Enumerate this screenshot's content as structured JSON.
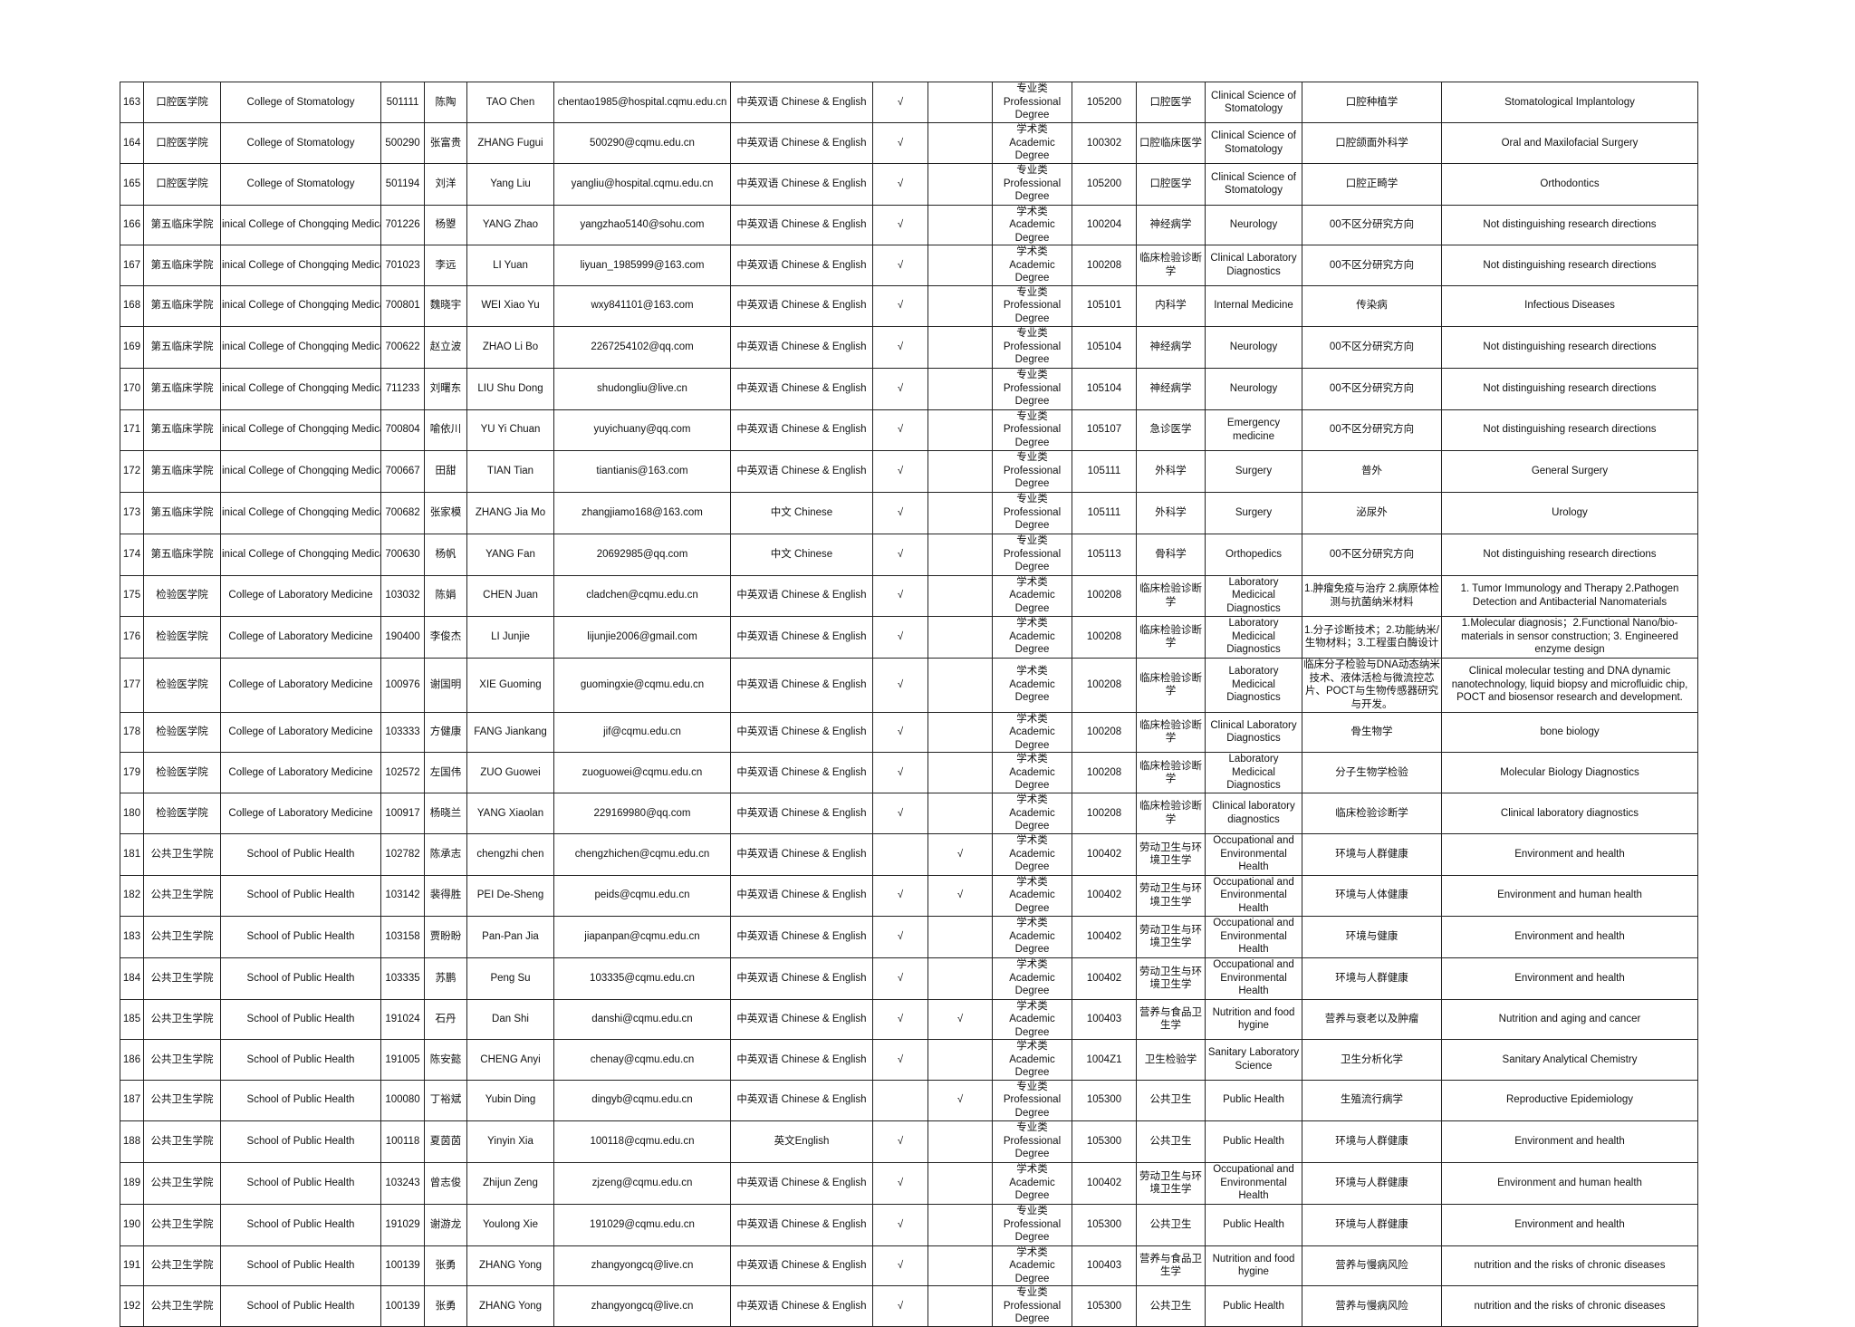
{
  "rows": [
    [
      "163",
      "口腔医学院",
      "College of Stomatology",
      "501111",
      "陈陶",
      "TAO Chen",
      "chentao1985@hospital.cqmu.edu.cn",
      "中英双语 Chinese & English",
      "√",
      "",
      "专业类 Professional Degree",
      "105200",
      "口腔医学",
      "Clinical Science of Stomatology",
      "口腔种植学",
      "Stomatological Implantology"
    ],
    [
      "164",
      "口腔医学院",
      "College of Stomatology",
      "500290",
      "张富贵",
      "ZHANG Fugui",
      "500290@cqmu.edu.cn",
      "中英双语 Chinese & English",
      "√",
      "",
      "学术类 Academic Degree",
      "100302",
      "口腔临床医学",
      "Clinical Science of Stomatology",
      "口腔颌面外科学",
      "Oral and Maxilofacial Surgery"
    ],
    [
      "165",
      "口腔医学院",
      "College of Stomatology",
      "501194",
      "刘洋",
      "Yang Liu",
      "yangliu@hospital.cqmu.edu.cn",
      "中英双语 Chinese & English",
      "√",
      "",
      "专业类 Professional Degree",
      "105200",
      "口腔医学",
      "Clinical Science of Stomatology",
      "口腔正畸学",
      "Orthodontics"
    ],
    [
      "166",
      "第五临床学院",
      "inical College of Chongqing Medica",
      "701226",
      "杨曌",
      "YANG Zhao",
      "yangzhao5140@sohu.com",
      "中英双语 Chinese & English",
      "√",
      "",
      "学术类 Academic Degree",
      "100204",
      "神经病学",
      "Neurology",
      "00不区分研究方向",
      "Not distinguishing research directions"
    ],
    [
      "167",
      "第五临床学院",
      "inical College of Chongqing Medica",
      "701023",
      "李远",
      "LI Yuan",
      "liyuan_1985999@163.com",
      "中英双语 Chinese & English",
      "√",
      "",
      "学术类 Academic Degree",
      "100208",
      "临床检验诊断学",
      "Clinical Laboratory Diagnostics",
      "00不区分研究方向",
      "Not distinguishing research directions"
    ],
    [
      "168",
      "第五临床学院",
      "inical College of Chongqing Medica",
      "700801",
      "魏晓宇",
      "WEI Xiao Yu",
      "wxy841101@163.com",
      "中英双语 Chinese & English",
      "√",
      "",
      "专业类 Professional Degree",
      "105101",
      "内科学",
      "Internal Medicine",
      "传染病",
      "Infectious Diseases"
    ],
    [
      "169",
      "第五临床学院",
      "inical College of Chongqing Medica",
      "700622",
      "赵立波",
      "ZHAO Li Bo",
      "2267254102@qq.com",
      "中英双语 Chinese & English",
      "√",
      "",
      "专业类 Professional Degree",
      "105104",
      "神经病学",
      "Neurology",
      "00不区分研究方向",
      "Not distinguishing research directions"
    ],
    [
      "170",
      "第五临床学院",
      "inical College of Chongqing Medica",
      "711233",
      "刘曙东",
      "LIU Shu Dong",
      "shudongliu@live.cn",
      "中英双语 Chinese & English",
      "√",
      "",
      "专业类 Professional Degree",
      "105104",
      "神经病学",
      "Neurology",
      "00不区分研究方向",
      "Not distinguishing research directions"
    ],
    [
      "171",
      "第五临床学院",
      "inical College of Chongqing Medica",
      "700804",
      "喻依川",
      "YU Yi Chuan",
      "yuyichuany@qq.com",
      "中英双语 Chinese & English",
      "√",
      "",
      "专业类 Professional Degree",
      "105107",
      "急诊医学",
      "Emergency medicine",
      "00不区分研究方向",
      "Not distinguishing research directions"
    ],
    [
      "172",
      "第五临床学院",
      "inical College of Chongqing Medica",
      "700667",
      "田甜",
      "TIAN Tian",
      "tiantianis@163.com",
      "中英双语 Chinese & English",
      "√",
      "",
      "专业类 Professional Degree",
      "105111",
      "外科学",
      "Surgery",
      "普外",
      "General Surgery"
    ],
    [
      "173",
      "第五临床学院",
      "inical College of Chongqing Medica",
      "700682",
      "张家模",
      "ZHANG Jia Mo",
      "zhangjiamo168@163.com",
      "中文 Chinese",
      "√",
      "",
      "专业类 Professional Degree",
      "105111",
      "外科学",
      "Surgery",
      "泌尿外",
      "Urology"
    ],
    [
      "174",
      "第五临床学院",
      "inical College of Chongqing Medica",
      "700630",
      "杨帆",
      "YANG Fan",
      "20692985@qq.com",
      "中文 Chinese",
      "√",
      "",
      "专业类 Professional Degree",
      "105113",
      "骨科学",
      "Orthopedics",
      "00不区分研究方向",
      "Not distinguishing research directions"
    ],
    [
      "175",
      "检验医学院",
      "College of Laboratory Medicine",
      "103032",
      "陈娟",
      "CHEN Juan",
      "cladchen@cqmu.edu.cn",
      "中英双语 Chinese & English",
      "√",
      "",
      "学术类 Academic Degree",
      "100208",
      "临床检验诊断学",
      "Laboratory Medicical Diagnostics",
      "1.肿瘤免疫与治疗 2.病原体检测与抗菌纳米材料",
      "1. Tumor Immunology and Therapy  2.Pathogen Detection and Antibacterial Nanomaterials"
    ],
    [
      "176",
      "检验医学院",
      "College of Laboratory Medicine",
      "190400",
      "李俊杰",
      "LI Junjie",
      "lijunjie2006@gmail.com",
      "中英双语 Chinese & English",
      "√",
      "",
      "学术类 Academic Degree",
      "100208",
      "临床检验诊断学",
      "Laboratory Medicical Diagnostics",
      "1.分子诊断技术；2.功能纳米/生物材料；3.工程蛋白酶设计",
      "1.Molecular diagnosis；2.Functional Nano/bio-materials in sensor construction; 3. Engineered enzyme design"
    ],
    [
      "177",
      "检验医学院",
      "College of Laboratory Medicine",
      "100976",
      "谢国明",
      "XIE Guoming",
      "guomingxie@cqmu.edu.cn",
      "中英双语 Chinese & English",
      "√",
      "",
      "学术类 Academic Degree",
      "100208",
      "临床检验诊断学",
      "Laboratory Medicical Diagnostics",
      "临床分子检验与DNA动态纳米技术、液体活检与微流控芯片、POCT与生物传感器研究与开发。",
      "Clinical molecular testing and DNA dynamic nanotechnology, liquid biopsy and microfluidic chip, POCT and biosensor research and development."
    ],
    [
      "178",
      "检验医学院",
      "College of Laboratory Medicine",
      "103333",
      "方健康",
      "FANG Jiankang",
      "jif@cqmu.edu.cn",
      "中英双语 Chinese & English",
      "√",
      "",
      "学术类 Academic Degree",
      "100208",
      "临床检验诊断学",
      "Clinical Laboratory Diagnostics",
      "骨生物学",
      "bone biology"
    ],
    [
      "179",
      "检验医学院",
      "College of Laboratory Medicine",
      "102572",
      "左国伟",
      "ZUO Guowei",
      "zuoguowei@cqmu.edu.cn",
      "中英双语 Chinese & English",
      "√",
      "",
      "学术类 Academic Degree",
      "100208",
      "临床检验诊断学",
      "Laboratory Medicical Diagnostics",
      "分子生物学检验",
      "Molecular Biology Diagnostics"
    ],
    [
      "180",
      "检验医学院",
      "College of Laboratory Medicine",
      "100917",
      "杨晓兰",
      "YANG Xiaolan",
      "229169980@qq.com",
      "中英双语 Chinese & English",
      "√",
      "",
      "学术类 Academic Degree",
      "100208",
      "临床检验诊断学",
      "Clinical laboratory diagnostics",
      "临床检验诊断学",
      "Clinical laboratory diagnostics"
    ],
    [
      "181",
      "公共卫生学院",
      "School of Public Health",
      "102782",
      "陈承志",
      "chengzhi chen",
      "chengzhichen@cqmu.edu.cn",
      "中英双语 Chinese & English",
      "",
      "√",
      "学术类 Academic Degree",
      "100402",
      "劳动卫生与环境卫生学",
      "Occupational and Environmental Health",
      "环境与人群健康",
      "Environment and health"
    ],
    [
      "182",
      "公共卫生学院",
      "School of Public Health",
      "103142",
      "裴得胜",
      "PEI De-Sheng",
      "peids@cqmu.edu.cn",
      "中英双语 Chinese & English",
      "√",
      "√",
      "学术类 Academic Degree",
      "100402",
      "劳动卫生与环境卫生学",
      "Occupational and Environmental Health",
      "环境与人体健康",
      "Environment and human health"
    ],
    [
      "183",
      "公共卫生学院",
      "School of Public Health",
      "103158",
      "贾盼盼",
      "Pan-Pan Jia",
      "jiapanpan@cqmu.edu.cn",
      "中英双语 Chinese & English",
      "√",
      "",
      "学术类 Academic Degree",
      "100402",
      "劳动卫生与环境卫生学",
      "Occupational and Environmental Health",
      "环境与健康",
      "Environment and health"
    ],
    [
      "184",
      "公共卫生学院",
      "School of Public Health",
      "103335",
      "苏鹏",
      "Peng Su",
      "103335@cqmu.edu.cn",
      "中英双语 Chinese & English",
      "√",
      "",
      "学术类 Academic Degree",
      "100402",
      "劳动卫生与环境卫生学",
      "Occupational and Environmental Health",
      "环境与人群健康",
      "Environment and health"
    ],
    [
      "185",
      "公共卫生学院",
      "School of Public Health",
      "191024",
      "石丹",
      "Dan Shi",
      "danshi@cqmu.edu.cn",
      "中英双语 Chinese & English",
      "√",
      "√",
      "学术类 Academic Degree",
      "100403",
      "营养与食品卫生学",
      "Nutrition and food hygine",
      "营养与衰老以及肿瘤",
      "Nutrition and aging and cancer"
    ],
    [
      "186",
      "公共卫生学院",
      "School of Public Health",
      "191005",
      "陈安懿",
      "CHENG Anyi",
      "chenay@cqmu.edu.cn",
      "中英双语 Chinese & English",
      "√",
      "",
      "学术类 Academic Degree",
      "1004Z1",
      "卫生检验学",
      "Sanitary Laboratory Science",
      "卫生分析化学",
      "Sanitary Analytical Chemistry"
    ],
    [
      "187",
      "公共卫生学院",
      "School of Public Health",
      "100080",
      "丁裕斌",
      "Yubin Ding",
      "dingyb@cqmu.edu.cn",
      "中英双语 Chinese & English",
      "",
      "√",
      "专业类 Professional Degree",
      "105300",
      "公共卫生",
      "Public Health",
      "生殖流行病学",
      "Reproductive Epidemiology"
    ],
    [
      "188",
      "公共卫生学院",
      "School of Public Health",
      "100118",
      "夏茵茵",
      "Yinyin Xia",
      "100118@cqmu.edu.cn",
      "英文English",
      "√",
      "",
      "专业类 Professional Degree",
      "105300",
      "公共卫生",
      "Public Health",
      "环境与人群健康",
      "Environment and health"
    ],
    [
      "189",
      "公共卫生学院",
      "School of Public Health",
      "103243",
      "曾志俊",
      "Zhijun Zeng",
      "zjzeng@cqmu.edu.cn",
      "中英双语 Chinese & English",
      "√",
      "",
      "学术类 Academic Degree",
      "100402",
      "劳动卫生与环境卫生学",
      "Occupational and Environmental Health",
      "环境与人群健康",
      "Environment and human health"
    ],
    [
      "190",
      "公共卫生学院",
      "School of Public Health",
      "191029",
      "谢游龙",
      "Youlong Xie",
      "191029@cqmu.edu.cn",
      "中英双语 Chinese & English",
      "√",
      "",
      "专业类 Professional Degree",
      "105300",
      "公共卫生",
      "Public Health",
      "环境与人群健康",
      "Environment and health"
    ],
    [
      "191",
      "公共卫生学院",
      "School of Public Health",
      "100139",
      "张勇",
      "ZHANG Yong",
      "zhangyongcq@live.cn",
      "中英双语 Chinese & English",
      "√",
      "",
      "学术类 Academic Degree",
      "100403",
      "营养与食品卫生学",
      "Nutrition and food hygine",
      "营养与慢病风险",
      "nutrition and the risks of chronic diseases"
    ],
    [
      "192",
      "公共卫生学院",
      "School of Public Health",
      "100139",
      "张勇",
      "ZHANG Yong",
      "zhangyongcq@live.cn",
      "中英双语 Chinese & English",
      "√",
      "",
      "专业类 Professional Degree",
      "105300",
      "公共卫生",
      "Public Health",
      "营养与慢病风险",
      "nutrition and the risks of chronic diseases"
    ]
  ]
}
